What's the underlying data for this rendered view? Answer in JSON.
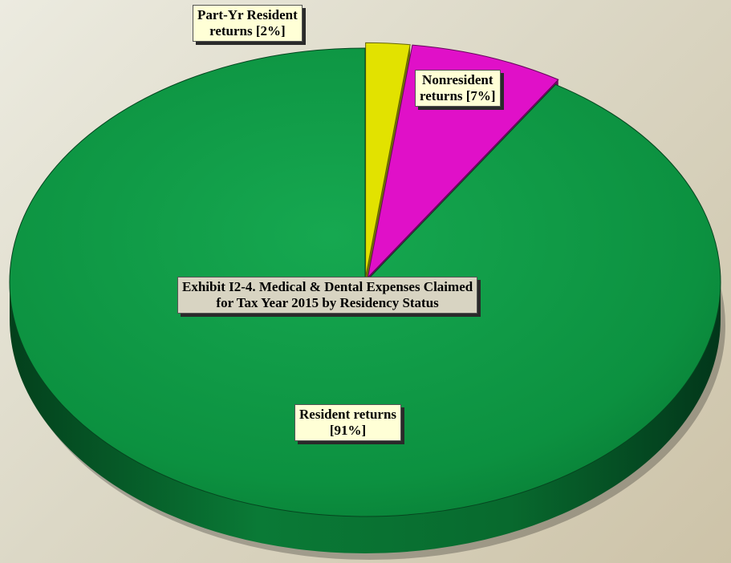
{
  "chart_data": {
    "type": "pie",
    "title_lines": [
      "Exhibit I2-4. Medical & Dental Expenses Claimed",
      "for Tax Year 2015 by Residency Status"
    ],
    "slices": [
      {
        "label_lines": [
          "Part-Yr Resident",
          "returns [2%]"
        ],
        "value": 2,
        "color": "#e2e200",
        "exploded": true
      },
      {
        "label_lines": [
          "Nonresident",
          "returns [7%]"
        ],
        "value": 7,
        "color": "#e010c8",
        "exploded": true
      },
      {
        "label_lines": [
          "Resident returns",
          "[91%]"
        ],
        "value": 91,
        "color": "#0c9a44",
        "exploded": false
      }
    ],
    "style": "3d-tilted",
    "legend": "none",
    "label_background": "#ffffd6",
    "title_background": "#d8d4c2"
  }
}
